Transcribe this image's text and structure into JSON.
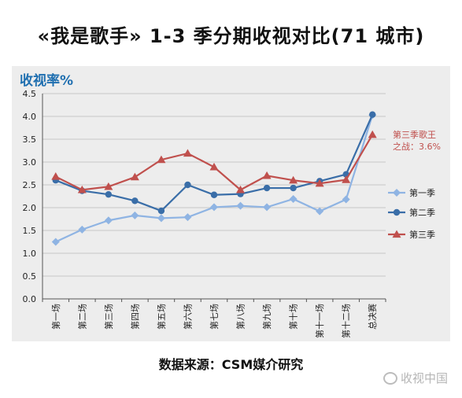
{
  "title": "«我是歌手» 1-3 季分期收视对比(71 城市)",
  "source": "数据来源：CSM媒介研究",
  "watermark": "收视中国",
  "chart_data": {
    "type": "line",
    "ylabel": "收视率%",
    "ylim": [
      0,
      4.5
    ],
    "yticks": [
      "0.0",
      "0.5",
      "1.0",
      "1.5",
      "2.0",
      "2.5",
      "3.0",
      "3.5",
      "4.0",
      "4.5"
    ],
    "categories": [
      "第一场",
      "第二场",
      "第三场",
      "第四场",
      "第五场",
      "第六场",
      "第七场",
      "第八场",
      "第九场",
      "第十场",
      "第十一场",
      "第十二场",
      "总决赛"
    ],
    "grid": true,
    "legend_position": "right",
    "series": [
      {
        "name": "第一季",
        "color": "#8fb4e3",
        "marker": "diamond",
        "values": [
          1.25,
          1.52,
          1.72,
          1.83,
          1.77,
          1.79,
          2.01,
          2.04,
          2.01,
          2.19,
          1.92,
          2.18,
          4.03
        ]
      },
      {
        "name": "第二季",
        "color": "#3a6ea8",
        "marker": "circle",
        "values": [
          2.6,
          2.37,
          2.29,
          2.15,
          1.93,
          2.5,
          2.28,
          2.3,
          2.43,
          2.43,
          2.58,
          2.73,
          4.04
        ]
      },
      {
        "name": "第三季",
        "color": "#c0504d",
        "marker": "triangle",
        "values": [
          2.68,
          2.39,
          2.46,
          2.67,
          3.05,
          3.19,
          2.89,
          2.39,
          2.7,
          2.6,
          2.53,
          2.61,
          3.6
        ]
      }
    ],
    "annotation": {
      "lines": [
        "第三季歌王",
        "之战：3.6%"
      ],
      "color": "#c0504d"
    }
  }
}
